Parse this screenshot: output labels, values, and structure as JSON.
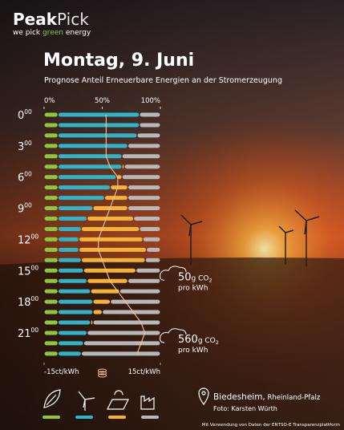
{
  "brand": {
    "name_a": "Peak",
    "name_b": "Pick",
    "tag_a": "we pick ",
    "tag_b": "green",
    "tag_c": " energy"
  },
  "chart_data": {
    "type": "stacked-hbar",
    "title": "Montag, 9. Juni",
    "subtitle": "Prognose Anteil Erneuerbare Energien an der Stromerzeugung",
    "categories": [
      {
        "hour": "0",
        "minute": "00"
      },
      null,
      null,
      {
        "hour": "3",
        "minute": "00"
      },
      null,
      null,
      {
        "hour": "6",
        "minute": "00"
      },
      null,
      null,
      {
        "hour": "9",
        "minute": "00"
      },
      null,
      null,
      {
        "hour": "12",
        "minute": "00"
      },
      null,
      null,
      {
        "hour": "15",
        "minute": "00"
      },
      null,
      null,
      {
        "hour": "18",
        "minute": "00"
      },
      null,
      null,
      {
        "hour": "21",
        "minute": "00"
      },
      null,
      null
    ],
    "xlim": [
      0,
      100
    ],
    "xticks": [
      {
        "value": 0,
        "label": "0%"
      },
      {
        "value": 50,
        "label": "50%"
      },
      {
        "value": 100,
        "label": "100%"
      }
    ],
    "series": [
      {
        "color": "#8dc63f",
        "values": [
          12,
          12,
          12,
          12,
          12,
          12,
          12,
          12,
          12,
          12,
          12,
          12,
          12,
          12,
          12,
          12,
          12,
          12,
          12,
          12,
          12,
          12,
          12,
          12
        ]
      },
      {
        "color": "#2fb5c9",
        "values": [
          70,
          70,
          68,
          60,
          55,
          55,
          50,
          45,
          40,
          30,
          25,
          20,
          18,
          18,
          20,
          22,
          25,
          28,
          30,
          30,
          28,
          25,
          22,
          20
        ]
      },
      {
        "color": "#f5b335",
        "values": [
          0,
          0,
          0,
          0,
          0,
          2,
          5,
          15,
          20,
          30,
          40,
          50,
          55,
          58,
          55,
          45,
          35,
          25,
          15,
          8,
          2,
          0,
          0,
          0
        ]
      },
      {
        "color": "#b8b8b8",
        "values": [
          18,
          18,
          20,
          28,
          33,
          31,
          33,
          28,
          28,
          28,
          23,
          18,
          15,
          12,
          13,
          21,
          28,
          35,
          43,
          50,
          58,
          63,
          66,
          68
        ]
      }
    ],
    "price": {
      "color": "#f2c49a",
      "values": [
        1,
        1,
        1,
        1,
        1,
        2,
        4,
        4,
        3,
        2,
        1,
        0,
        -1,
        -1,
        0,
        1,
        2,
        4,
        6,
        8,
        10,
        11,
        10,
        9
      ]
    },
    "plim": [
      -15,
      15
    ],
    "pticks": [
      {
        "value": -15,
        "label": "-15ct/kWh"
      },
      {
        "value": 15,
        "label": "15ct/kWh"
      }
    ],
    "annotations": [
      {
        "row": 15,
        "value": 50,
        "unit": "g CO",
        "sub": "2",
        "per": "pro kWh"
      },
      {
        "row": 21,
        "value": 560,
        "unit": "g CO",
        "sub": "2",
        "per": "pro kWh"
      }
    ]
  },
  "footer": {
    "place": "Biedesheim,",
    "region": " Rheinland-Pfalz",
    "photo": "Foto: Karsten Würth",
    "source": "Mit Verwendung von Daten der ENTSO-E Transparenzplattform"
  }
}
